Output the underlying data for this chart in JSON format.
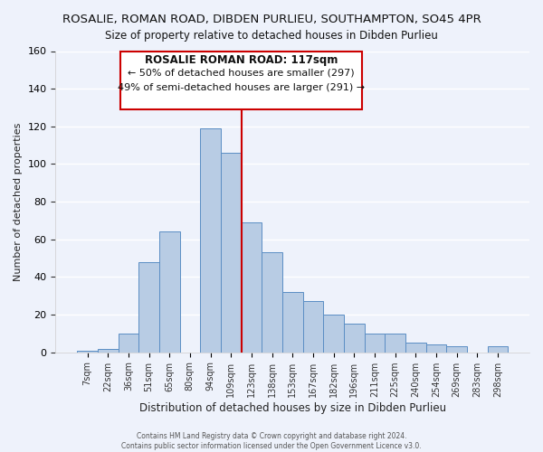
{
  "title": "ROSALIE, ROMAN ROAD, DIBDEN PURLIEU, SOUTHAMPTON, SO45 4PR",
  "subtitle": "Size of property relative to detached houses in Dibden Purlieu",
  "xlabel": "Distribution of detached houses by size in Dibden Purlieu",
  "ylabel": "Number of detached properties",
  "bar_labels": [
    "7sqm",
    "22sqm",
    "36sqm",
    "51sqm",
    "65sqm",
    "80sqm",
    "94sqm",
    "109sqm",
    "123sqm",
    "138sqm",
    "153sqm",
    "167sqm",
    "182sqm",
    "196sqm",
    "211sqm",
    "225sqm",
    "240sqm",
    "254sqm",
    "269sqm",
    "283sqm",
    "298sqm"
  ],
  "bar_values": [
    1,
    2,
    10,
    48,
    64,
    0,
    119,
    106,
    69,
    53,
    32,
    27,
    20,
    15,
    10,
    10,
    5,
    4,
    3,
    0,
    3
  ],
  "bar_color": "#b8cce4",
  "bar_edge_color": "#5b8ec4",
  "vline_color": "#cc0000",
  "vline_index": 7,
  "annotation_title": "ROSALIE ROMAN ROAD: 117sqm",
  "annotation_line1": "← 50% of detached houses are smaller (297)",
  "annotation_line2": "49% of semi-detached houses are larger (291) →",
  "annotation_box_color": "#cc0000",
  "annotation_box_face": "#ffffff",
  "ylim": [
    0,
    160
  ],
  "yticks": [
    0,
    20,
    40,
    60,
    80,
    100,
    120,
    140,
    160
  ],
  "background_color": "#eef2fb",
  "footer1": "Contains HM Land Registry data © Crown copyright and database right 2024.",
  "footer2": "Contains public sector information licensed under the Open Government Licence v3.0.",
  "title_fontsize": 9.5,
  "subtitle_fontsize": 8.5
}
